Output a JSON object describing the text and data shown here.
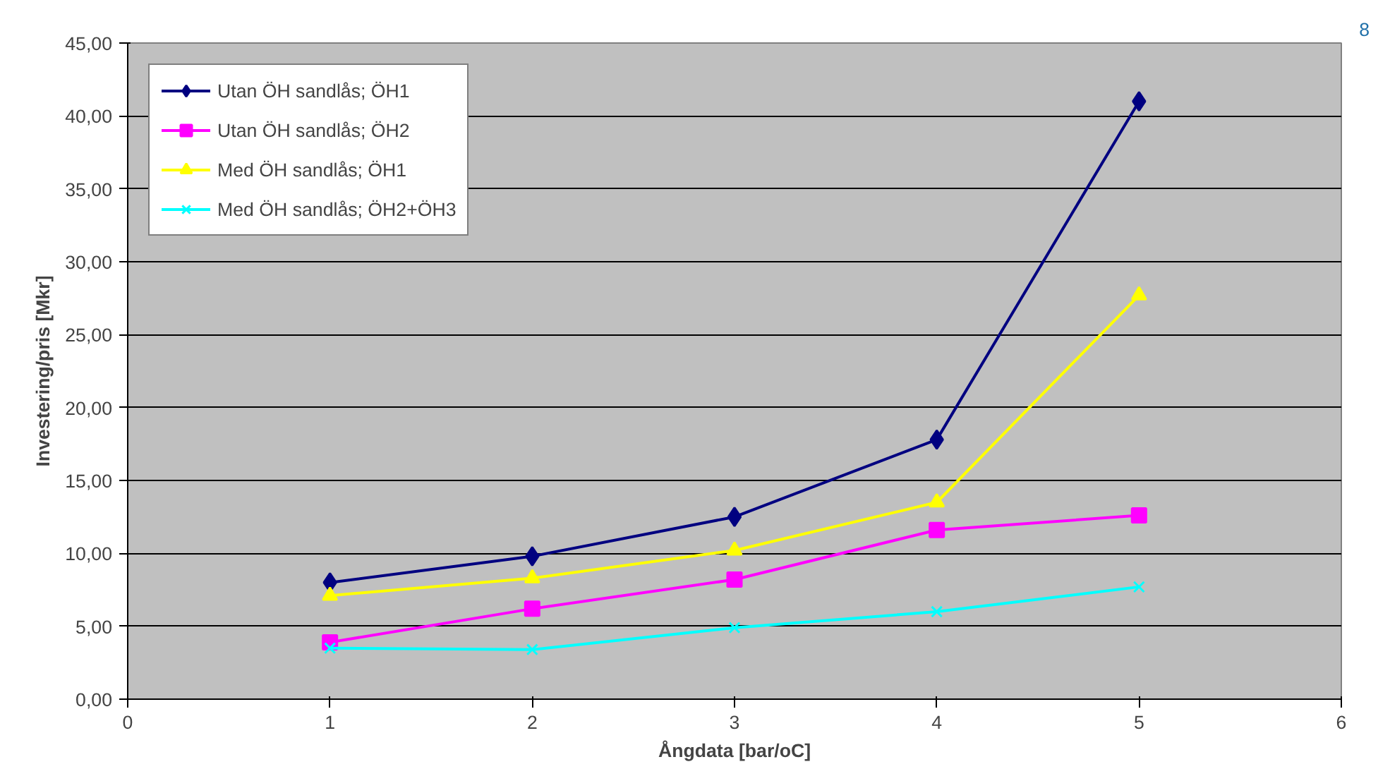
{
  "chart_data": {
    "type": "line",
    "xlabel": "Ångdata [bar/oC]",
    "ylabel": "Investering/pris [Mkr]",
    "x": [
      1,
      2,
      3,
      4,
      5
    ],
    "series": [
      {
        "name": "Utan ÖH sandlås; ÖH1",
        "color": "#000080",
        "marker": "diamond",
        "values": [
          8.0,
          9.8,
          12.5,
          17.8,
          41.0
        ]
      },
      {
        "name": "Utan ÖH sandlås; ÖH2",
        "color": "#ff00ff",
        "marker": "square",
        "values": [
          3.9,
          6.2,
          8.2,
          11.6,
          12.6
        ]
      },
      {
        "name": "Med ÖH sandlås; ÖH1",
        "color": "#ffff00",
        "marker": "triangle",
        "values": [
          7.1,
          8.3,
          10.2,
          13.5,
          27.7
        ]
      },
      {
        "name": "Med ÖH sandlås; ÖH2+ÖH3",
        "color": "#00ffff",
        "marker": "cross",
        "values": [
          3.5,
          3.4,
          4.9,
          6.0,
          7.7
        ]
      }
    ],
    "xlim": [
      0,
      6
    ],
    "xticks": [
      0,
      1,
      2,
      3,
      4,
      5,
      6
    ],
    "ylim": [
      0,
      45
    ],
    "yticks": [
      {
        "value": 0,
        "label": "0,00"
      },
      {
        "value": 5,
        "label": "5,00"
      },
      {
        "value": 10,
        "label": "10,00"
      },
      {
        "value": 15,
        "label": "15,00"
      },
      {
        "value": 20,
        "label": "20,00"
      },
      {
        "value": 25,
        "label": "25,00"
      },
      {
        "value": 30,
        "label": "30,00"
      },
      {
        "value": 35,
        "label": "35,00"
      },
      {
        "value": 40,
        "label": "40,00"
      },
      {
        "value": 45,
        "label": "45,00"
      }
    ],
    "grid": "y",
    "legend": "top left",
    "line_style": "solid",
    "annotations": [
      "8"
    ]
  }
}
